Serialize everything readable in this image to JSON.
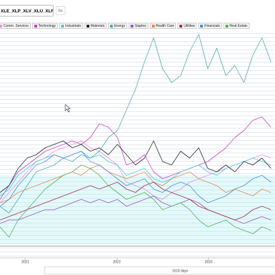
{
  "toolbar": {
    "query": "XLE_XLP_XLV_XLU_XLF_X...",
    "go": "Go"
  },
  "chart_data": {
    "type": "line",
    "x": [
      0,
      36,
      72,
      108,
      144,
      180,
      216,
      252,
      288,
      324,
      360,
      396,
      432,
      468,
      504,
      540,
      576,
      612,
      648,
      684,
      720,
      756,
      792,
      828,
      864,
      900,
      936,
      972,
      1008,
      1044,
      1080
    ],
    "xlim": [
      0,
      1096
    ],
    "xticks": [
      {
        "value": 101,
        "label": "2021"
      },
      {
        "value": 466,
        "label": "2022"
      },
      {
        "value": 831,
        "label": "2023"
      }
    ],
    "ylim": [
      0,
      3.3
    ],
    "x_range_label": "1510 days",
    "series": [
      {
        "name": "Comm. Services",
        "color": "#e890e0",
        "values": [
          0.8,
          0.95,
          1.1,
          1.25,
          1.4,
          1.45,
          1.55,
          1.6,
          1.65,
          1.7,
          1.6,
          1.55,
          1.45,
          1.35,
          1.1,
          1.05,
          1.0,
          0.9,
          0.85,
          0.95,
          1.0,
          1.1,
          1.15,
          1.2,
          1.25,
          1.3,
          1.35,
          1.4,
          1.45,
          1.5,
          1.45
        ]
      },
      {
        "name": "Technology",
        "color": "#c040c8",
        "values": [
          0.85,
          1.05,
          1.25,
          1.35,
          1.45,
          1.55,
          1.6,
          1.65,
          1.7,
          1.65,
          1.75,
          1.95,
          1.9,
          1.75,
          1.35,
          1.4,
          1.5,
          1.25,
          1.15,
          1.2,
          1.25,
          1.3,
          1.35,
          1.4,
          1.5,
          1.6,
          1.75,
          1.85,
          2.0,
          2.05,
          1.9
        ]
      },
      {
        "name": "Industrials",
        "color": "#40c8e8",
        "values": [
          0.9,
          1.0,
          1.2,
          1.3,
          1.4,
          1.45,
          1.5,
          1.45,
          1.5,
          1.55,
          1.45,
          1.5,
          1.4,
          1.35,
          1.2,
          1.25,
          1.3,
          1.15,
          1.1,
          1.15,
          1.25,
          1.3,
          1.35,
          1.25,
          1.2,
          1.3,
          1.35,
          1.4,
          1.45,
          1.4,
          1.35
        ]
      },
      {
        "name": "Materials",
        "color": "#202020",
        "values": [
          0.95,
          1.05,
          1.3,
          1.45,
          1.5,
          1.6,
          1.65,
          1.7,
          1.6,
          1.65,
          1.55,
          1.6,
          1.5,
          1.65,
          1.5,
          1.35,
          1.45,
          1.7,
          1.4,
          1.35,
          1.55,
          1.45,
          1.6,
          1.3,
          1.25,
          1.35,
          1.25,
          1.4,
          1.35,
          1.45,
          1.3
        ]
      },
      {
        "name": "Energy",
        "color": "#48a8b0",
        "values": [
          0.75,
          0.65,
          0.85,
          1.05,
          1.25,
          1.3,
          1.35,
          1.45,
          1.4,
          1.5,
          1.45,
          1.55,
          1.75,
          1.85,
          2.15,
          2.45,
          2.85,
          3.2,
          2.75,
          2.55,
          2.65,
          3.0,
          3.25,
          2.75,
          3.05,
          2.65,
          2.8,
          2.55,
          2.95,
          3.2,
          2.85
        ]
      },
      {
        "name": "Staples",
        "color": "#9850c0",
        "values": [
          0.5,
          0.55,
          0.55,
          0.6,
          0.65,
          0.7,
          0.7,
          0.75,
          0.8,
          0.85,
          0.8,
          0.85,
          0.8,
          0.85,
          0.75,
          0.8,
          0.85,
          0.9,
          0.8,
          0.75,
          0.8,
          0.85,
          0.8,
          0.7,
          0.65,
          0.6,
          0.55,
          0.5,
          0.55,
          0.6,
          0.55
        ]
      },
      {
        "name": "Health Care",
        "color": "#e8844c",
        "values": [
          0.8,
          0.85,
          0.95,
          1.0,
          1.05,
          1.1,
          1.15,
          1.2,
          1.25,
          1.2,
          1.3,
          1.35,
          1.25,
          1.2,
          1.15,
          1.2,
          1.25,
          1.1,
          1.05,
          1.15,
          1.2,
          1.25,
          1.15,
          1.1,
          1.05,
          0.95,
          1.0,
          0.95,
          0.9,
          1.0,
          0.95
        ]
      },
      {
        "name": "Utilities",
        "color": "#a02848",
        "values": [
          0.55,
          0.6,
          0.65,
          0.7,
          0.75,
          0.8,
          0.85,
          0.9,
          0.95,
          1.0,
          1.05,
          1.0,
          1.05,
          1.1,
          1.0,
          0.95,
          1.05,
          1.1,
          1.0,
          0.95,
          0.9,
          0.85,
          0.75,
          0.7,
          0.65,
          0.6,
          0.55,
          0.6,
          0.7,
          0.75,
          0.7
        ]
      },
      {
        "name": "Financials",
        "color": "#4c88e0",
        "values": [
          0.75,
          0.85,
          1.05,
          1.2,
          1.35,
          1.4,
          1.5,
          1.45,
          1.5,
          1.55,
          1.4,
          1.35,
          1.25,
          1.15,
          1.05,
          1.1,
          1.15,
          1.0,
          0.95,
          1.05,
          1.1,
          1.05,
          0.9,
          0.8,
          0.85,
          0.9,
          1.0,
          1.05,
          1.15,
          1.2,
          1.1
        ]
      },
      {
        "name": "Real Estate",
        "color": "#50b050",
        "values": [
          0.45,
          0.3,
          0.55,
          0.7,
          0.85,
          1.0,
          1.1,
          1.2,
          1.25,
          1.35,
          1.3,
          1.2,
          1.05,
          0.95,
          0.85,
          0.9,
          0.95,
          0.85,
          0.7,
          0.75,
          0.8,
          0.7,
          0.55,
          0.45,
          0.5,
          0.55,
          0.45,
          0.4,
          0.35,
          0.45,
          0.4
        ]
      }
    ]
  }
}
